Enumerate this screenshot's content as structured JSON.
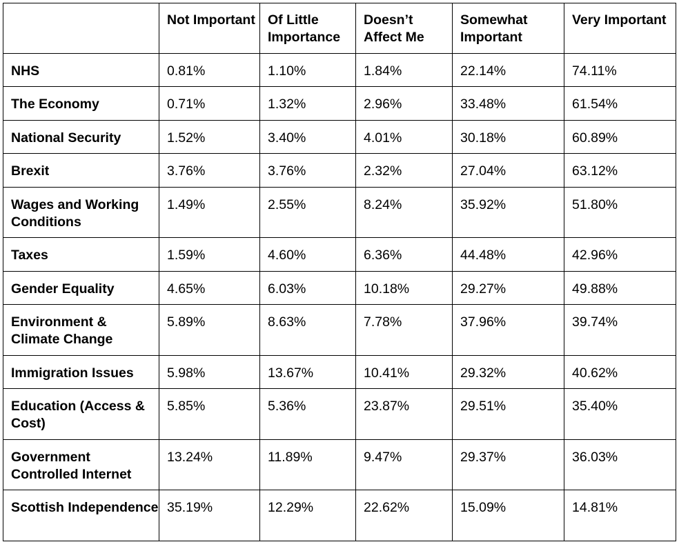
{
  "table": {
    "headers": [
      "",
      "Not Important",
      "Of Little Importance",
      "Doesn’t Affect Me",
      "Somewhat Important",
      "Very Important"
    ],
    "rows": [
      {
        "label": "NHS",
        "values": [
          "0.81%",
          "1.10%",
          "1.84%",
          "22.14%",
          "74.11%"
        ]
      },
      {
        "label": "The Economy",
        "values": [
          "0.71%",
          "1.32%",
          "2.96%",
          "33.48%",
          "61.54%"
        ]
      },
      {
        "label": "National Security",
        "values": [
          "1.52%",
          "3.40%",
          "4.01%",
          "30.18%",
          "60.89%"
        ]
      },
      {
        "label": "Brexit",
        "values": [
          "3.76%",
          "3.76%",
          "2.32%",
          "27.04%",
          "63.12%"
        ]
      },
      {
        "label": "Wages and Working Conditions",
        "values": [
          "1.49%",
          "2.55%",
          "8.24%",
          "35.92%",
          "51.80%"
        ]
      },
      {
        "label": "Taxes",
        "values": [
          "1.59%",
          "4.60%",
          "6.36%",
          "44.48%",
          "42.96%"
        ]
      },
      {
        "label": "Gender Equality",
        "values": [
          "4.65%",
          "6.03%",
          "10.18%",
          "29.27%",
          "49.88%"
        ]
      },
      {
        "label": "Environment & Climate Change",
        "values": [
          "5.89%",
          "8.63%",
          "7.78%",
          "37.96%",
          "39.74%"
        ]
      },
      {
        "label": "Immigration Issues",
        "values": [
          "5.98%",
          "13.67%",
          "10.41%",
          "29.32%",
          "40.62%"
        ]
      },
      {
        "label": "Education (Access & Cost)",
        "values": [
          "5.85%",
          "5.36%",
          "23.87%",
          "29.51%",
          "35.40%"
        ]
      },
      {
        "label": "Government Controlled Internet",
        "values": [
          "13.24%",
          "11.89%",
          "9.47%",
          "29.37%",
          "36.03%"
        ]
      },
      {
        "label": "Scottish Independence",
        "values": [
          "35.19%",
          "12.29%",
          "22.62%",
          "15.09%",
          "14.81%"
        ]
      }
    ]
  }
}
